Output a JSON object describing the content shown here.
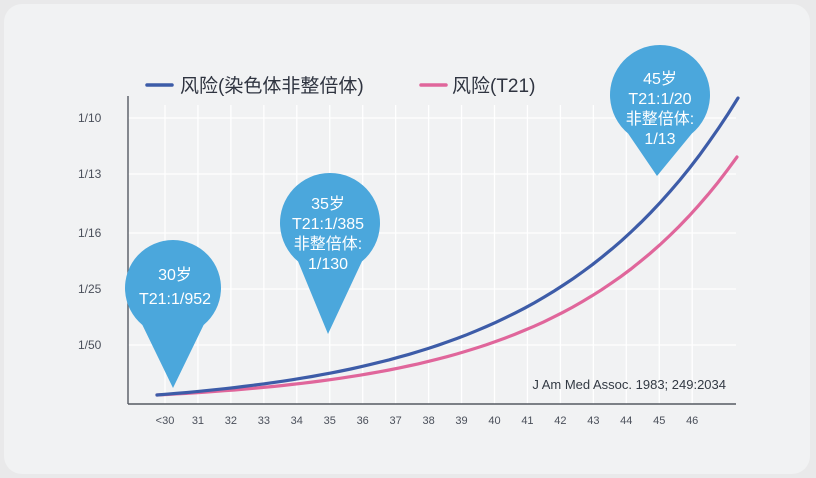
{
  "chart_data": {
    "type": "line",
    "x_categories": [
      "<30",
      "31",
      "32",
      "33",
      "34",
      "35",
      "36",
      "37",
      "38",
      "39",
      "40",
      "41",
      "42",
      "43",
      "44",
      "45",
      "46"
    ],
    "y_tick_labels": [
      "1/10",
      "1/13",
      "1/16",
      "1/25",
      "1/50"
    ],
    "grid": true,
    "legend_position": "top-left",
    "series": [
      {
        "name": "风险(染色体非整倍体)",
        "color": "#3d5ca8"
      },
      {
        "name": "风险(T21)",
        "color": "#e0669b"
      }
    ],
    "annotations": [
      {
        "lines": [
          "30岁",
          "T21:1/952"
        ],
        "x": "<30"
      },
      {
        "lines": [
          "35岁",
          "T21:1/385",
          "非整倍体:",
          "1/130"
        ],
        "x": "35"
      },
      {
        "lines": [
          "45岁",
          "T21:1/20",
          "非整倍体:",
          "1/13"
        ],
        "x": "45"
      }
    ],
    "source": "J Am Med Assoc. 1983; 249:2034",
    "colors": {
      "pin": "#4ba7dc",
      "grid": "#ffffff",
      "axis": "#555a63"
    }
  }
}
